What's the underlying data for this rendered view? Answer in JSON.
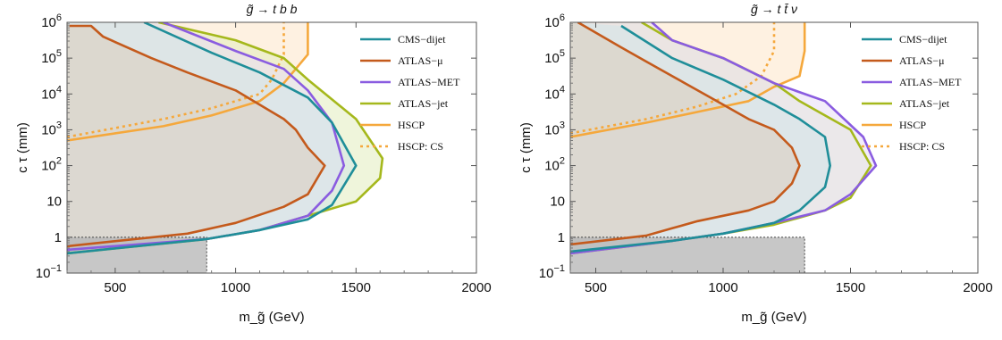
{
  "chart_data": [
    {
      "type": "area",
      "title": "g̃ → t b b",
      "xlabel": "m_g̃ (GeV)",
      "ylabel": "c τ (mm)",
      "xlim": [
        300,
        2000
      ],
      "ylim_log10": [
        -1,
        6
      ],
      "yscale": "log",
      "x_ticks": [
        500,
        1000,
        1500,
        2000
      ],
      "y_ticks": [
        "10^-1",
        "1",
        "10",
        "10^2",
        "10^3",
        "10^4",
        "10^5",
        "10^6"
      ],
      "legend": [
        "CMS−dijet",
        "ATLAS−μ",
        "ATLAS−MET",
        "ATLAS−jet",
        "HSCP",
        "HSCP: CS"
      ],
      "legend_position": "top-right",
      "series": [
        {
          "name": "CMS−dijet",
          "color": "#1f8e99",
          "x": [
            300,
            880,
            1100,
            1300,
            1400,
            1500,
            1400,
            1300,
            1100,
            900,
            620
          ],
          "logy": [
            -0.45,
            -0.05,
            0.2,
            0.5,
            0.9,
            2.0,
            3.2,
            3.9,
            4.6,
            5.15,
            6.0
          ]
        },
        {
          "name": "ATLAS−μ",
          "color": "#c45a1c",
          "x": [
            300,
            800,
            1000,
            1200,
            1300,
            1370,
            1300,
            1250,
            1200,
            1000,
            800,
            650,
            450,
            400,
            310
          ],
          "logy": [
            -0.25,
            0.1,
            0.4,
            0.85,
            1.2,
            2.0,
            2.5,
            3.0,
            3.3,
            4.1,
            4.6,
            5.0,
            5.6,
            5.9,
            5.9
          ]
        },
        {
          "name": "ATLAS−MET",
          "color": "#8a5ce0",
          "x": [
            300,
            880,
            1100,
            1300,
            1400,
            1450,
            1400,
            1300,
            1200,
            1000,
            700
          ],
          "logy": [
            -0.35,
            -0.05,
            0.2,
            0.6,
            1.3,
            2.0,
            3.2,
            4.1,
            4.7,
            5.2,
            6.0
          ]
        },
        {
          "name": "ATLAS−jet",
          "color": "#a5b81c",
          "x": [
            300,
            880,
            1100,
            1300,
            1500,
            1600,
            1610,
            1500,
            1300,
            1200,
            1000,
            680
          ],
          "logy": [
            -0.45,
            -0.05,
            0.2,
            0.6,
            1.0,
            1.65,
            2.2,
            3.3,
            4.4,
            5.0,
            5.5,
            6.0
          ]
        },
        {
          "name": "HSCP",
          "color": "#f5a83c",
          "x": [
            300,
            700,
            900,
            1100,
            1200,
            1300,
            1300
          ],
          "logy": [
            2.7,
            3.1,
            3.4,
            3.8,
            4.3,
            5.1,
            6.0
          ]
        },
        {
          "name": "HSCP: CS",
          "color": "#f5a83c",
          "dashed": true,
          "x": [
            300,
            700,
            900,
            1100,
            1150,
            1200,
            1200
          ],
          "logy": [
            2.8,
            3.3,
            3.6,
            4.0,
            4.4,
            5.1,
            6.0
          ]
        }
      ],
      "excluded_box": {
        "xmax": 880,
        "y_max": 1
      }
    },
    {
      "type": "area",
      "title": "g̃ → t t̄ ν",
      "xlabel": "m_g̃ (GeV)",
      "ylabel": "c τ (mm)",
      "xlim": [
        400,
        2000
      ],
      "ylim_log10": [
        -1,
        6
      ],
      "yscale": "log",
      "x_ticks": [
        500,
        1000,
        1500,
        2000
      ],
      "y_ticks": [
        "10^-1",
        "1",
        "10",
        "10^2",
        "10^3",
        "10^4",
        "10^5",
        "10^6"
      ],
      "legend": [
        "CMS−dijet",
        "ATLAS−μ",
        "ATLAS−MET",
        "ATLAS−jet",
        "HSCP",
        "HSCP: CS"
      ],
      "legend_position": "top-right",
      "series": [
        {
          "name": "CMS−dijet",
          "color": "#1f8e99",
          "x": [
            400,
            800,
            1000,
            1200,
            1300,
            1400,
            1420,
            1400,
            1300,
            1200,
            1000,
            800,
            600
          ],
          "logy": [
            -0.4,
            -0.1,
            0.1,
            0.4,
            0.75,
            1.4,
            2.0,
            2.8,
            3.3,
            3.7,
            4.4,
            5.0,
            5.9
          ]
        },
        {
          "name": "ATLAS−μ",
          "color": "#c45a1c",
          "x": [
            400,
            700,
            800,
            900,
            1000,
            1100,
            1200,
            1270,
            1300,
            1270,
            1200,
            1100,
            1000,
            900,
            800,
            700,
            600,
            430
          ],
          "logy": [
            -0.2,
            0.05,
            0.25,
            0.45,
            0.6,
            0.75,
            1.0,
            1.5,
            2.0,
            2.5,
            3.0,
            3.3,
            3.7,
            4.1,
            4.5,
            4.9,
            5.3,
            6.0
          ]
        },
        {
          "name": "ATLAS−MET",
          "color": "#8a5ce0",
          "x": [
            400,
            800,
            1000,
            1200,
            1400,
            1500,
            1600,
            1550,
            1400,
            1200,
            1000,
            800,
            720
          ],
          "logy": [
            -0.45,
            -0.1,
            0.1,
            0.4,
            0.75,
            1.2,
            2.0,
            2.8,
            3.8,
            4.3,
            5.0,
            5.5,
            6.0
          ]
        },
        {
          "name": "ATLAS−jet",
          "color": "#a5b81c",
          "x": [
            400,
            800,
            1000,
            1200,
            1400,
            1500,
            1580,
            1500,
            1300,
            1200,
            1000,
            800,
            680
          ],
          "logy": [
            -0.45,
            -0.1,
            0.1,
            0.35,
            0.75,
            1.1,
            2.0,
            3.0,
            3.8,
            4.3,
            5.0,
            5.5,
            6.0
          ]
        },
        {
          "name": "HSCP",
          "color": "#f5a83c",
          "x": [
            400,
            700,
            900,
            1100,
            1200,
            1300,
            1320,
            1320
          ],
          "logy": [
            2.8,
            3.2,
            3.5,
            3.8,
            4.2,
            4.5,
            5.2,
            6.0
          ]
        },
        {
          "name": "HSCP: CS",
          "color": "#f5a83c",
          "dashed": true,
          "x": [
            400,
            700,
            900,
            1050,
            1150,
            1200,
            1200
          ],
          "logy": [
            2.9,
            3.3,
            3.65,
            4.0,
            4.5,
            5.2,
            6.0
          ]
        }
      ],
      "excluded_box": {
        "xmax": 1320,
        "y_max": 1
      }
    }
  ]
}
